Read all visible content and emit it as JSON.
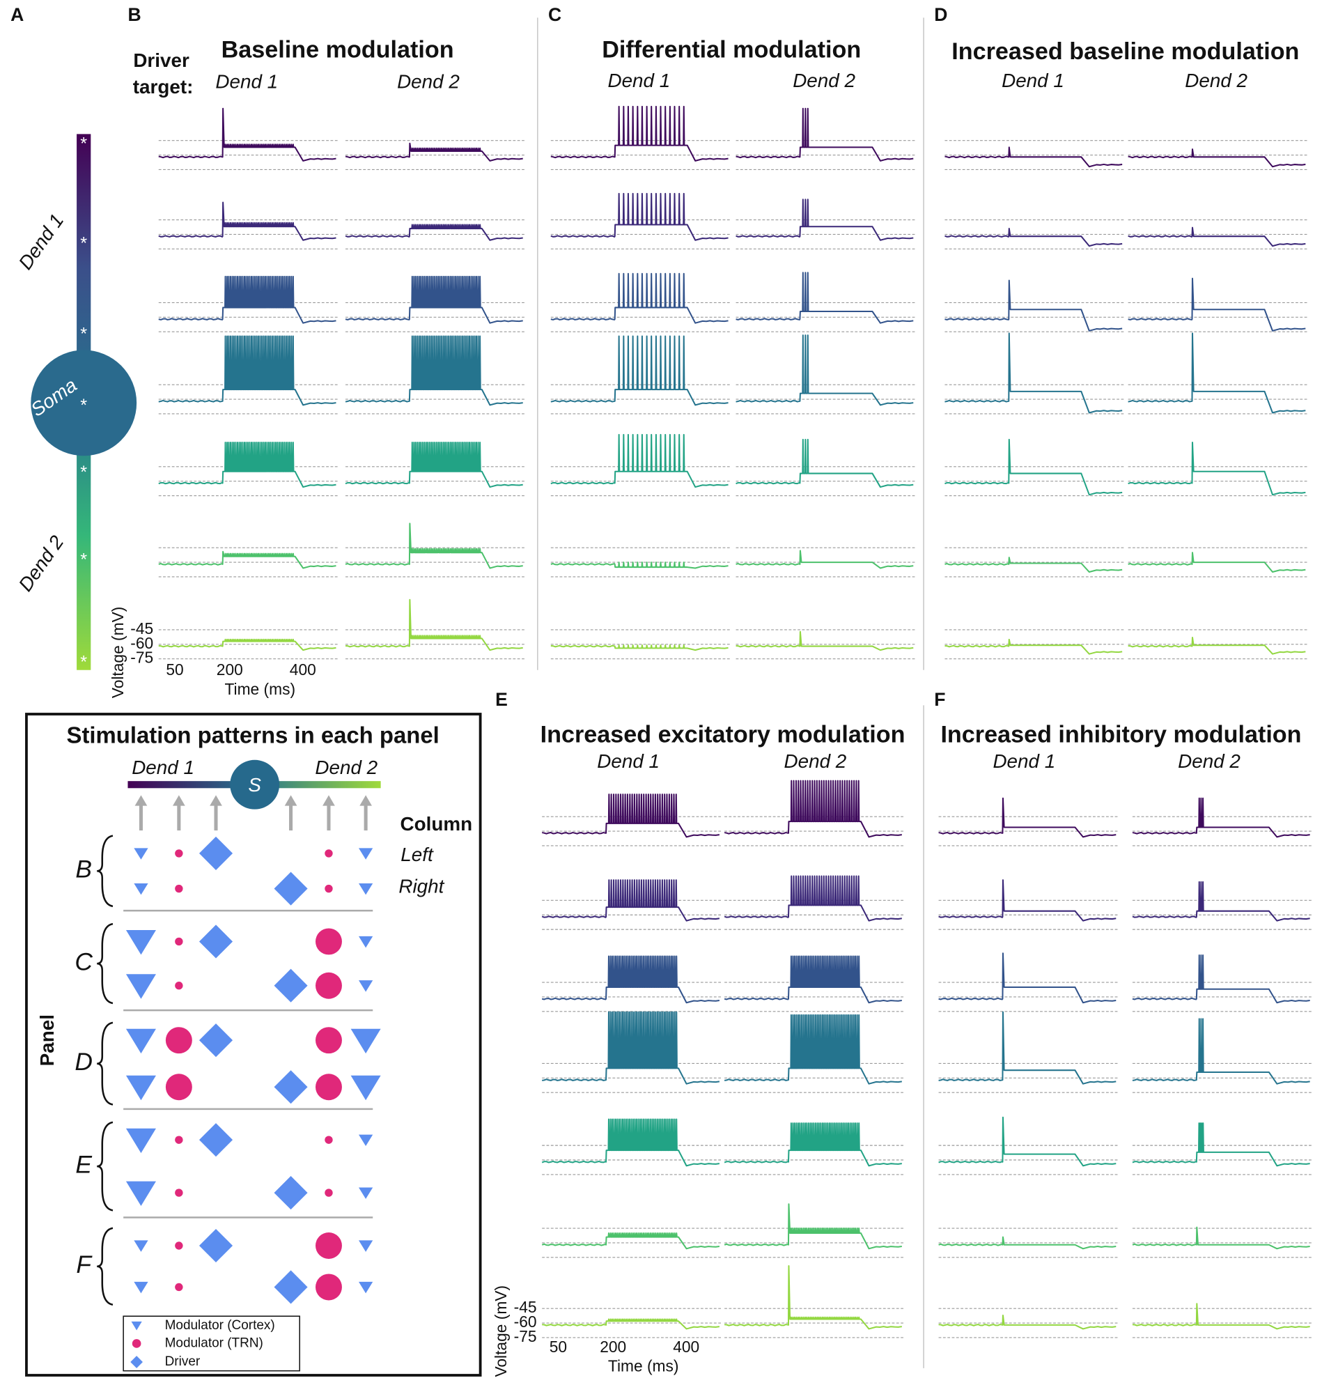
{
  "letters": [
    "A",
    "B",
    "C",
    "D",
    "E",
    "F"
  ],
  "neuron": {
    "dend1": "Dend 1",
    "soma": "Soma",
    "dend2": "Dend 2",
    "site_marker": "*"
  },
  "driver_target": [
    "Driver",
    "target:"
  ],
  "panels": [
    {
      "title": "Baseline modulation",
      "columns": [
        "Dend 1",
        "Dend 2"
      ]
    },
    {
      "title": "Differential modulation",
      "columns": [
        "Dend 1",
        "Dend 2"
      ]
    },
    {
      "title": "Increased baseline modulation",
      "columns": [
        "Dend 1",
        "Dend 2"
      ]
    },
    {
      "title": "Increased excitatory modulation",
      "columns": [
        "Dend 1",
        "Dend 2"
      ]
    },
    {
      "title": "Increased inhibitory modulation",
      "columns": [
        "Dend 1",
        "Dend 2"
      ]
    }
  ],
  "axes": [
    {
      "ylabel": "Voltage (mV)",
      "yticks": [
        -45,
        -60,
        -75
      ],
      "xlabel": "Time (ms)",
      "xticks": [
        50,
        200,
        400
      ]
    },
    {
      "ylabel": "Voltage (mV)",
      "yticks": [
        -45,
        -60,
        -75
      ],
      "xlabel": "Time (ms)",
      "xticks": [
        50,
        200,
        400
      ]
    }
  ],
  "trace_colors": [
    "#3e0a5c",
    "#3b2878",
    "#32538b",
    "#25748e",
    "#22a385",
    "#4cc16b",
    "#93d741"
  ],
  "stimulation": {
    "title": "Stimulation patterns in each panel",
    "dend1": "Dend 1",
    "dend2": "Dend 2",
    "soma": "S",
    "column_label": "Column",
    "columns": [
      "Left",
      "Right"
    ],
    "panel_label": "Panel",
    "panels": [
      "B",
      "C",
      "D",
      "E",
      "F"
    ],
    "legend": [
      "Modulator (Cortex)",
      "Modulator (TRN)",
      "Driver"
    ]
  }
}
